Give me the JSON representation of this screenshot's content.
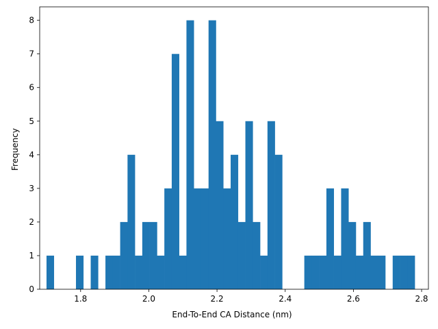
{
  "chart_data": {
    "type": "bar",
    "xlabel": "End-To-End CA Distance (nm)",
    "ylabel": "Frequency",
    "xlim": [
      1.68,
      2.82
    ],
    "ylim": [
      0,
      8.4
    ],
    "xticks": [
      1.8,
      2.0,
      2.2,
      2.4,
      2.6,
      2.8
    ],
    "xtick_labels": [
      "1.8",
      "2.0",
      "2.2",
      "2.4",
      "2.6",
      "2.8"
    ],
    "yticks": [
      0,
      1,
      2,
      3,
      4,
      5,
      6,
      7,
      8
    ],
    "ytick_labels": [
      "0",
      "1",
      "2",
      "3",
      "4",
      "5",
      "6",
      "7",
      "8"
    ],
    "bar_color": "#1f77b4",
    "bin_start": 1.7,
    "bin_width": 0.0216,
    "values": [
      1,
      0,
      0,
      0,
      1,
      0,
      1,
      0,
      1,
      1,
      2,
      4,
      1,
      2,
      2,
      1,
      3,
      7,
      1,
      8,
      3,
      3,
      8,
      5,
      3,
      4,
      2,
      5,
      2,
      1,
      5,
      4,
      0,
      0,
      0,
      1,
      1,
      1,
      3,
      1,
      3,
      2,
      1,
      2,
      1,
      1,
      0,
      1,
      1,
      1
    ],
    "grid": false
  }
}
